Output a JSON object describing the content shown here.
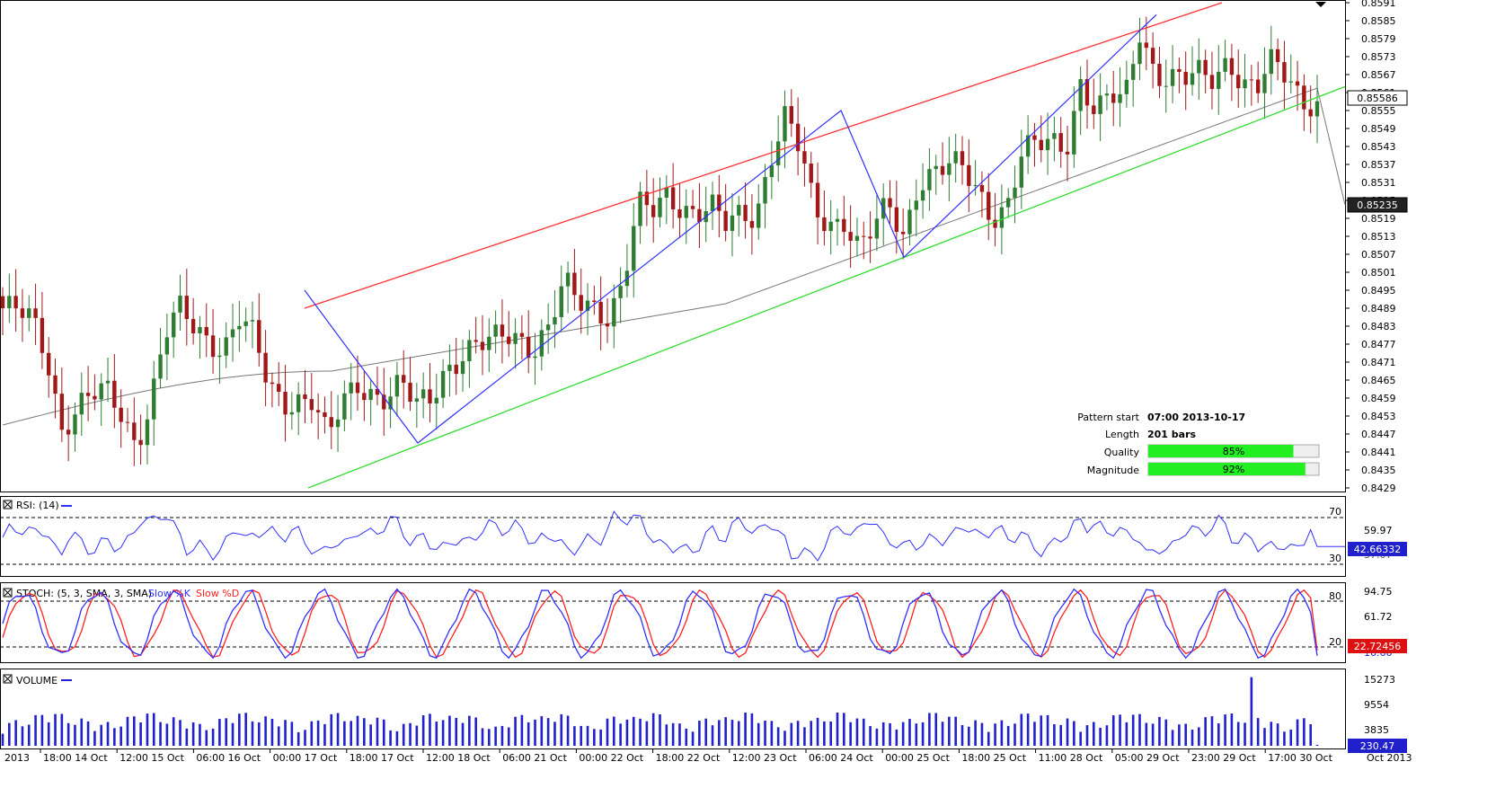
{
  "colors": {
    "bull_candle": "#2e7d32",
    "bear_candle": "#a01818",
    "resistance": "#ff3030",
    "support": "#33dd33",
    "zigzag": "#3030ff",
    "ma": "#777777",
    "rsi": "#3030ff",
    "stoch_k": "#3030ff",
    "stoch_d": "#ff2020",
    "volume": "#2020cc",
    "quality_fill": "#22ee22"
  },
  "price_axis": {
    "ticks": [
      "0.8591",
      "0.8585",
      "0.8579",
      "0.8573",
      "0.8567",
      "0.8561",
      "0.8555",
      "0.8549",
      "0.8543",
      "0.8537",
      "0.8531",
      "0.8525",
      "0.8519",
      "0.8513",
      "0.8507",
      "0.8501",
      "0.8495",
      "0.8489",
      "0.8483",
      "0.8477",
      "0.8471",
      "0.8465",
      "0.8459",
      "0.8453",
      "0.8447",
      "0.8441",
      "0.8435",
      "0.8429"
    ],
    "current_price": "0.85586",
    "ma_value": "0.85235"
  },
  "time_axis": {
    "labels": [
      "2013",
      "18:00 14 Oct",
      "12:00 15 Oct",
      "06:00 16 Oct",
      "00:00 17 Oct",
      "18:00 17 Oct",
      "12:00 18 Oct",
      "06:00 21 Oct",
      "00:00 22 Oct",
      "18:00 22 Oct",
      "12:00 23 Oct",
      "06:00 24 Oct",
      "00:00 25 Oct",
      "18:00 25 Oct",
      "11:00 28 Oct",
      "05:00 29 Oct",
      "23:00 29 Oct",
      "17:00 30 Oct",
      "Oct 2013"
    ]
  },
  "pattern_info": {
    "start_label": "Pattern start",
    "start_value": "07:00 2013-10-17",
    "length_label": "Length",
    "length_value": "201 bars",
    "quality_label": "Quality",
    "quality_value": "85%",
    "quality_pct": 85,
    "magnitude_label": "Magnitude",
    "magnitude_value": "92%",
    "magnitude_pct": 92
  },
  "rsi_panel": {
    "title": "RSI: (14)",
    "ticks": [
      "70",
      "59.97",
      "37.07",
      "30"
    ],
    "current": "42.66332"
  },
  "stoch_panel": {
    "title": "STOCH: (5, 3, SMA, 3, SMA)",
    "k_label": "Slow %K",
    "d_label": "Slow %D",
    "ticks": [
      "94.75",
      "80",
      "61.72",
      "20",
      "16.66"
    ],
    "current": "22.72456"
  },
  "volume_panel": {
    "title": "VOLUME",
    "ticks": [
      "15273",
      "9554",
      "3835"
    ],
    "current": "230.47"
  },
  "chart_data": [
    {
      "type": "candlestick",
      "title": "",
      "bars": 201,
      "price_range": [
        0.8426,
        0.8592
      ],
      "anchor_closes": [
        0.8489,
        0.8487,
        0.8484,
        0.8473,
        0.845,
        0.8456,
        0.8459,
        0.846,
        0.8454,
        0.8445,
        0.8458,
        0.848,
        0.8487,
        0.8482,
        0.8479,
        0.8477,
        0.8486,
        0.8478,
        0.8462,
        0.8458,
        0.846,
        0.8459,
        0.8444,
        0.8456,
        0.8464,
        0.8462,
        0.846,
        0.8463,
        0.8455,
        0.8459,
        0.847,
        0.8474,
        0.8476,
        0.8476,
        0.848,
        0.848,
        0.8477,
        0.8483,
        0.8496,
        0.849,
        0.849,
        0.8488,
        0.8498,
        0.8522,
        0.852,
        0.8527,
        0.8524,
        0.8522,
        0.8522,
        0.8515,
        0.852,
        0.8521,
        0.8541,
        0.8553,
        0.854,
        0.852,
        0.8518,
        0.852,
        0.8509,
        0.8515,
        0.8522,
        0.8513,
        0.8533,
        0.8535,
        0.8536,
        0.8534,
        0.8528,
        0.8521,
        0.8524,
        0.854,
        0.8542,
        0.8544,
        0.8544,
        0.8566,
        0.8554,
        0.8558,
        0.8558,
        0.8583,
        0.8569,
        0.8566,
        0.8564,
        0.8566,
        0.8566,
        0.8574,
        0.8564,
        0.8562,
        0.857,
        0.8566,
        0.856,
        0.8558
      ],
      "pattern": "Ascending Channel",
      "resistance_line": [
        [
          0.8489,
          0.859
        ]
      ],
      "support_line": [
        [
          0.8427,
          0.8562
        ]
      ]
    },
    {
      "type": "line",
      "title": "RSI: (14)",
      "ylim": [
        20,
        80
      ],
      "guides": [
        30,
        70
      ],
      "last": 42.66332
    },
    {
      "type": "line",
      "title": "STOCH: (5, 3, SMA, 3, SMA)",
      "ylim": [
        10,
        100
      ],
      "guides": [
        20,
        80
      ],
      "last": 22.72456
    },
    {
      "type": "bar",
      "title": "VOLUME",
      "ylim": [
        0,
        16000
      ],
      "last": 230.47,
      "max_spike": 15273
    }
  ]
}
